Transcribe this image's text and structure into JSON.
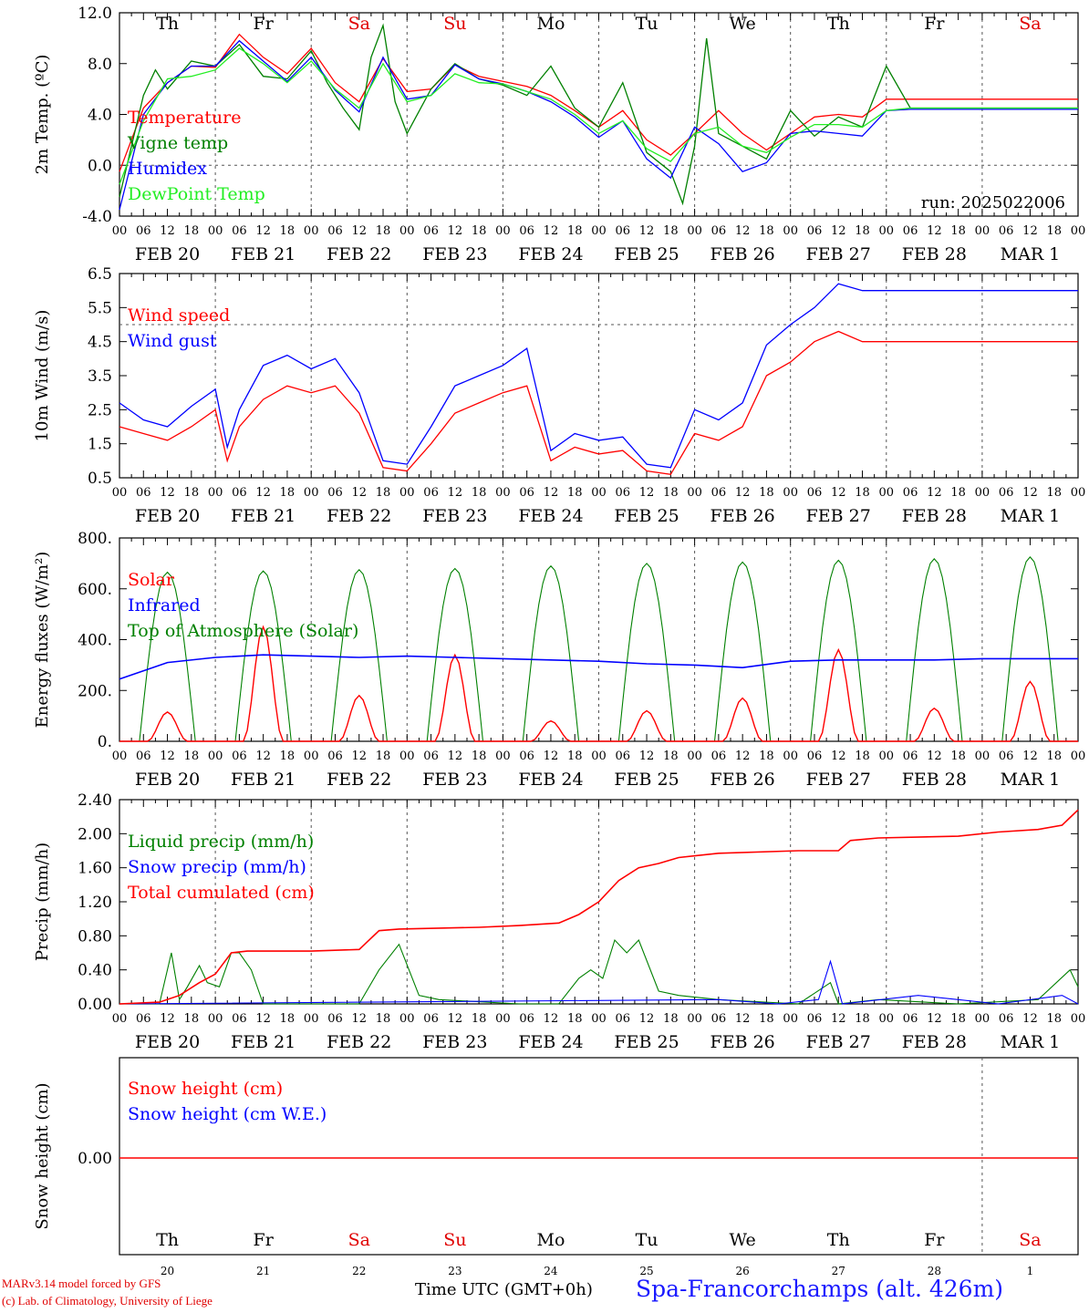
{
  "footer": {
    "credit1": "MARv3.14 model forced by GFS",
    "credit2": "(c) Lab. of Climatology, University of Liege",
    "time_label": "Time UTC (GMT+0h)",
    "station": "Spa-Francorchamps (alt. 426m)"
  },
  "colors": {
    "red": "#ff0000",
    "green": "#008000",
    "blue": "#0000ff",
    "lime": "#22ee22",
    "grey": "#555555"
  },
  "chart_data": [
    {
      "type": "line",
      "ylabel": "2m Temp. (ºC)",
      "yticks": [
        "12.0",
        "8.0",
        "4.0",
        "0.0",
        "-4.0"
      ],
      "ylim": [
        -4,
        12
      ],
      "dashed_y": [
        0
      ],
      "annotation": "run: 2025022006",
      "day_labels": [
        "Th",
        "Fr",
        "Sa",
        "Su",
        "Mo",
        "Tu",
        "We",
        "Th",
        "Fr",
        "Sa"
      ],
      "dates": [
        "FEB 20",
        "FEB 21",
        "FEB 22",
        "FEB 23",
        "FEB 24",
        "FEB 25",
        "FEB 26",
        "FEB 27",
        "FEB 28",
        "MAR  1"
      ],
      "hour_ticks": [
        "00",
        "06",
        "12",
        "18"
      ],
      "x_unit": "hours since 2025-02-20 00 UTC",
      "series": [
        {
          "name": "Temperature",
          "color": "#ff0000",
          "x": [
            0,
            6,
            12,
            18,
            24,
            30,
            36,
            42,
            48,
            54,
            60,
            66,
            72,
            78,
            84,
            90,
            96,
            102,
            108,
            114,
            120,
            126,
            132,
            138,
            144,
            150,
            156,
            162,
            168,
            174,
            180,
            186,
            192,
            198,
            204,
            210,
            216,
            222,
            228,
            234,
            240
          ],
          "y": [
            -0.5,
            4.5,
            6.5,
            7.8,
            7.7,
            10.3,
            8.5,
            7.2,
            9.2,
            6.5,
            5.0,
            8.4,
            5.8,
            6.0,
            7.9,
            7.0,
            6.6,
            6.2,
            5.5,
            4.3,
            3.0,
            4.3,
            2.0,
            0.8,
            2.5,
            4.3,
            2.5,
            1.2,
            2.5,
            3.8,
            4.0,
            3.8,
            5.2,
            5.2,
            5.2,
            5.2,
            5.2,
            5.2,
            5.2,
            5.2,
            5.2
          ]
        },
        {
          "name": "Vigne temp",
          "color": "#008000",
          "x": [
            0,
            6,
            9,
            12,
            18,
            24,
            30,
            36,
            42,
            48,
            52,
            56,
            60,
            63,
            66,
            69,
            72,
            78,
            84,
            90,
            96,
            102,
            108,
            114,
            120,
            126,
            132,
            138,
            141,
            144,
            147,
            150,
            156,
            162,
            168,
            174,
            180,
            186,
            192,
            198,
            204,
            210,
            216,
            222,
            228,
            234,
            240
          ],
          "y": [
            -2.5,
            5.5,
            7.5,
            6.0,
            8.2,
            7.8,
            9.5,
            7.0,
            6.8,
            9.0,
            6.5,
            4.5,
            2.8,
            8.5,
            11.0,
            5.0,
            2.5,
            6.0,
            8.0,
            6.8,
            6.3,
            5.5,
            7.8,
            4.5,
            3.0,
            6.5,
            1.0,
            -0.5,
            -3.0,
            1.5,
            10.0,
            2.5,
            1.5,
            0.5,
            4.3,
            2.3,
            3.8,
            3.0,
            7.8,
            4.5,
            4.5,
            4.5,
            4.5,
            4.5,
            4.5,
            4.5,
            4.5
          ]
        },
        {
          "name": "Humidex",
          "color": "#0000ff",
          "x": [
            0,
            6,
            12,
            18,
            24,
            30,
            36,
            42,
            48,
            54,
            60,
            66,
            72,
            78,
            84,
            90,
            96,
            102,
            108,
            114,
            120,
            126,
            132,
            138,
            144,
            150,
            156,
            162,
            168,
            174,
            180,
            186,
            192,
            198,
            204,
            210,
            216,
            222,
            228,
            234,
            240
          ],
          "y": [
            -3.5,
            4.0,
            6.5,
            7.8,
            7.8,
            9.8,
            8.2,
            6.6,
            8.5,
            5.9,
            4.2,
            8.5,
            5.2,
            5.5,
            7.9,
            6.8,
            6.4,
            5.8,
            5.0,
            3.8,
            2.2,
            3.5,
            0.5,
            -1.0,
            3.0,
            1.7,
            -0.5,
            0.2,
            2.5,
            2.7,
            2.5,
            2.3,
            4.3,
            4.4,
            4.4,
            4.4,
            4.4,
            4.4,
            4.4,
            4.4,
            4.4
          ]
        },
        {
          "name": "DewPoint Temp",
          "color": "#22ee22",
          "x": [
            0,
            6,
            12,
            18,
            24,
            30,
            36,
            42,
            48,
            54,
            60,
            66,
            72,
            78,
            84,
            90,
            96,
            102,
            108,
            114,
            120,
            126,
            132,
            138,
            144,
            150,
            156,
            162,
            168,
            174,
            180,
            186,
            192,
            198,
            204,
            210,
            216,
            222,
            228,
            234,
            240
          ],
          "y": [
            -1.5,
            3.5,
            6.8,
            7.0,
            7.5,
            9.2,
            8.0,
            6.5,
            8.2,
            6.0,
            4.5,
            8.0,
            5.0,
            5.5,
            7.2,
            6.5,
            6.4,
            5.8,
            5.2,
            4.0,
            2.5,
            3.5,
            1.3,
            0.3,
            2.5,
            3.0,
            1.5,
            1.0,
            2.2,
            3.2,
            3.2,
            3.0,
            4.3,
            4.5,
            4.5,
            4.5,
            4.5,
            4.5,
            4.5,
            4.5,
            4.5
          ]
        }
      ]
    },
    {
      "type": "line",
      "ylabel": "10m Wind (m/s)",
      "yticks": [
        "6.5",
        "5.5",
        "4.5",
        "3.5",
        "2.5",
        "1.5",
        "0.5"
      ],
      "ylim": [
        0.5,
        6.5
      ],
      "dashed_y": [
        5.0
      ],
      "series": [
        {
          "name": "Wind speed",
          "color": "#ff0000",
          "x": [
            0,
            6,
            12,
            18,
            24,
            27,
            30,
            36,
            42,
            48,
            54,
            60,
            66,
            72,
            78,
            84,
            90,
            96,
            102,
            108,
            114,
            120,
            126,
            132,
            138,
            144,
            150,
            156,
            162,
            168,
            174,
            180,
            186,
            192,
            198,
            204,
            210,
            216,
            222,
            228,
            234,
            240
          ],
          "y": [
            2.0,
            1.8,
            1.6,
            2.0,
            2.5,
            1.0,
            2.0,
            2.8,
            3.2,
            3.0,
            3.2,
            2.4,
            0.8,
            0.7,
            1.5,
            2.4,
            2.7,
            3.0,
            3.2,
            1.0,
            1.4,
            1.2,
            1.3,
            0.7,
            0.6,
            1.8,
            1.6,
            2.0,
            3.5,
            3.9,
            4.5,
            4.8,
            4.5,
            4.5,
            4.5,
            4.5,
            4.5,
            4.5,
            4.5,
            4.5,
            4.5,
            4.5
          ]
        },
        {
          "name": "Wind gust",
          "color": "#0000ff",
          "x": [
            0,
            6,
            12,
            18,
            24,
            27,
            30,
            36,
            42,
            48,
            54,
            60,
            66,
            72,
            78,
            84,
            90,
            96,
            102,
            108,
            114,
            120,
            126,
            132,
            138,
            144,
            150,
            156,
            162,
            168,
            174,
            180,
            186,
            192,
            198,
            204,
            210,
            216,
            222,
            228,
            234,
            240
          ],
          "y": [
            2.7,
            2.2,
            2.0,
            2.6,
            3.1,
            1.4,
            2.5,
            3.8,
            4.1,
            3.7,
            4.0,
            3.0,
            1.0,
            0.9,
            2.0,
            3.2,
            3.5,
            3.8,
            4.3,
            1.3,
            1.8,
            1.6,
            1.7,
            0.9,
            0.8,
            2.5,
            2.2,
            2.7,
            4.4,
            5.0,
            5.5,
            6.2,
            6.0,
            6.0,
            6.0,
            6.0,
            6.0,
            6.0,
            6.0,
            6.0,
            6.0,
            6.0
          ]
        }
      ]
    },
    {
      "type": "line",
      "ylabel": "Energy fluxes (W/m²)",
      "yticks": [
        "800.",
        "600.",
        "400.",
        "200.",
        "0."
      ],
      "ylim": [
        0,
        800
      ],
      "series": [
        {
          "name": "Solar",
          "color": "#ff0000",
          "peaks": [
            115,
            450,
            180,
            340,
            80,
            120,
            170,
            360,
            130,
            235
          ]
        },
        {
          "name": "Infrared",
          "color": "#0000ff",
          "level": [
            245,
            310,
            330,
            340,
            335,
            330,
            335,
            330,
            325,
            320,
            315,
            305,
            300,
            290,
            315,
            320,
            320,
            320,
            325,
            325
          ]
        },
        {
          "name": "Top of Atmosphere (Solar)",
          "color": "#008000",
          "peaks": [
            665,
            670,
            675,
            680,
            690,
            700,
            705,
            712,
            718,
            725
          ]
        }
      ]
    },
    {
      "type": "line",
      "ylabel": "Precip (mm/h)",
      "yticks": [
        "2.40",
        "2.00",
        "1.60",
        "1.20",
        "0.80",
        "0.40",
        "0.00"
      ],
      "ylim": [
        0,
        2.4
      ],
      "series": [
        {
          "name": "Liquid precip (mm/h)",
          "color": "#008000",
          "x": [
            0,
            10,
            13,
            15,
            17,
            20,
            22,
            25,
            28,
            30,
            33,
            36,
            40,
            60,
            65,
            70,
            75,
            80,
            100,
            110,
            115,
            118,
            121,
            124,
            127,
            130,
            135,
            140,
            150,
            170,
            178,
            180,
            190,
            210,
            230,
            238,
            240
          ],
          "y": [
            0,
            0,
            0.6,
            0.05,
            0.2,
            0.45,
            0.25,
            0.2,
            0.6,
            0.6,
            0.4,
            0.0,
            0.0,
            0.0,
            0.4,
            0.7,
            0.1,
            0.05,
            0.0,
            0.0,
            0.3,
            0.4,
            0.3,
            0.75,
            0.6,
            0.75,
            0.15,
            0.1,
            0.05,
            0.0,
            0.25,
            0.0,
            0.05,
            0.0,
            0.05,
            0.4,
            0.2
          ]
        },
        {
          "name": "Snow precip (mm/h)",
          "color": "#0000ff",
          "x": [
            0,
            150,
            165,
            175,
            178,
            181,
            200,
            210,
            220,
            236,
            240
          ],
          "y": [
            0,
            0.05,
            0.0,
            0.05,
            0.5,
            0.0,
            0.1,
            0.05,
            0.0,
            0.1,
            0.0
          ]
        },
        {
          "name": "Total cumulated (cm)",
          "color": "#ff0000",
          "x": [
            0,
            10,
            15,
            20,
            24,
            28,
            32,
            48,
            60,
            65,
            70,
            90,
            100,
            110,
            115,
            120,
            125,
            130,
            135,
            140,
            150,
            170,
            180,
            183,
            190,
            210,
            220,
            230,
            236,
            240
          ],
          "y": [
            0,
            0.02,
            0.1,
            0.25,
            0.35,
            0.6,
            0.62,
            0.62,
            0.64,
            0.86,
            0.88,
            0.9,
            0.92,
            0.95,
            1.05,
            1.2,
            1.45,
            1.6,
            1.65,
            1.72,
            1.77,
            1.8,
            1.8,
            1.92,
            1.95,
            1.97,
            2.02,
            2.05,
            2.1,
            2.28
          ]
        }
      ]
    },
    {
      "type": "line",
      "ylabel": "Snow height (cm)",
      "yticks": [
        "0.00"
      ],
      "series": [
        {
          "name": "Snow height (cm)",
          "color": "#ff0000"
        },
        {
          "name": "Snow height (cm W.E.)",
          "color": "#0000ff"
        }
      ],
      "day_labels": [
        "Th",
        "Fr",
        "Sa",
        "Su",
        "Mo",
        "Tu",
        "We",
        "Th",
        "Fr",
        "Sa"
      ],
      "day_numbers": [
        "20",
        "21",
        "22",
        "23",
        "24",
        "25",
        "26",
        "27",
        "28",
        "1"
      ]
    }
  ]
}
